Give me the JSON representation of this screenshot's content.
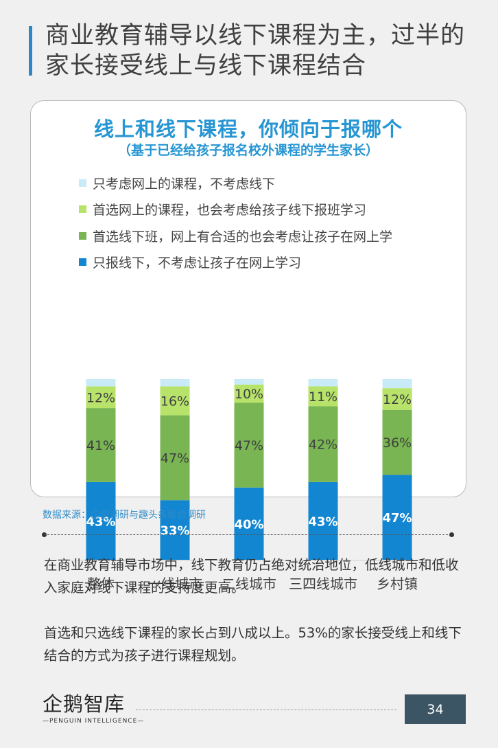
{
  "page": {
    "title": "商业教育辅导以线下课程为主，过半的家长接受线上与线下课程结合",
    "source": "数据来源：企鹅调研与趣头条联合调研",
    "paragraphs": [
      "在商业教育辅导市场中，线下教育仍占绝对统治地位，低线城市和低收入家庭对线下课程的支持度更高。",
      "首选和只选线下课程的家长占到八成以上。53%的家长接受线上和线下结合的方式为孩子进行课程规划。"
    ],
    "logo_text": "企鹅智库",
    "logo_subtext": "—PENGUIN INTELLIGENCE—",
    "page_number": "34"
  },
  "chart_data": {
    "type": "bar",
    "stacked": true,
    "title": "线上和线下课程，你倾向于报哪个",
    "subtitle": "（基于已经给孩子报名校外课程的学生家长）",
    "categories": [
      "整体",
      "一线城市",
      "二线城市",
      "三四线城市",
      "乡村镇"
    ],
    "series": [
      {
        "name": "只报线下，不考虑让孩子在网上学习",
        "values": [
          43,
          33,
          40,
          43,
          47
        ],
        "color": "#1286d1",
        "labels": [
          "43%",
          "33%",
          "40%",
          "43%",
          "47%"
        ]
      },
      {
        "name": "首选线下班，网上有合适的也会考虑让孩子在网上学",
        "values": [
          41,
          47,
          47,
          42,
          36
        ],
        "color": "#79b553",
        "labels": [
          "41%",
          "47%",
          "47%",
          "42%",
          "36%"
        ]
      },
      {
        "name": "首选网上的课程，也会考虑给孩子线下报班学习",
        "values": [
          12,
          16,
          10,
          11,
          12
        ],
        "color": "#b7e36a",
        "labels": [
          "12%",
          "16%",
          "10%",
          "11%",
          "12%"
        ]
      },
      {
        "name": "只考虑网上的课程，不考虑线下",
        "values": [
          4,
          4,
          3,
          4,
          5
        ],
        "color": "#c9ebf7"
      }
    ],
    "legend_order": [
      3,
      2,
      1,
      0
    ],
    "ylim": [
      0,
      100
    ],
    "legend": "top-left"
  }
}
